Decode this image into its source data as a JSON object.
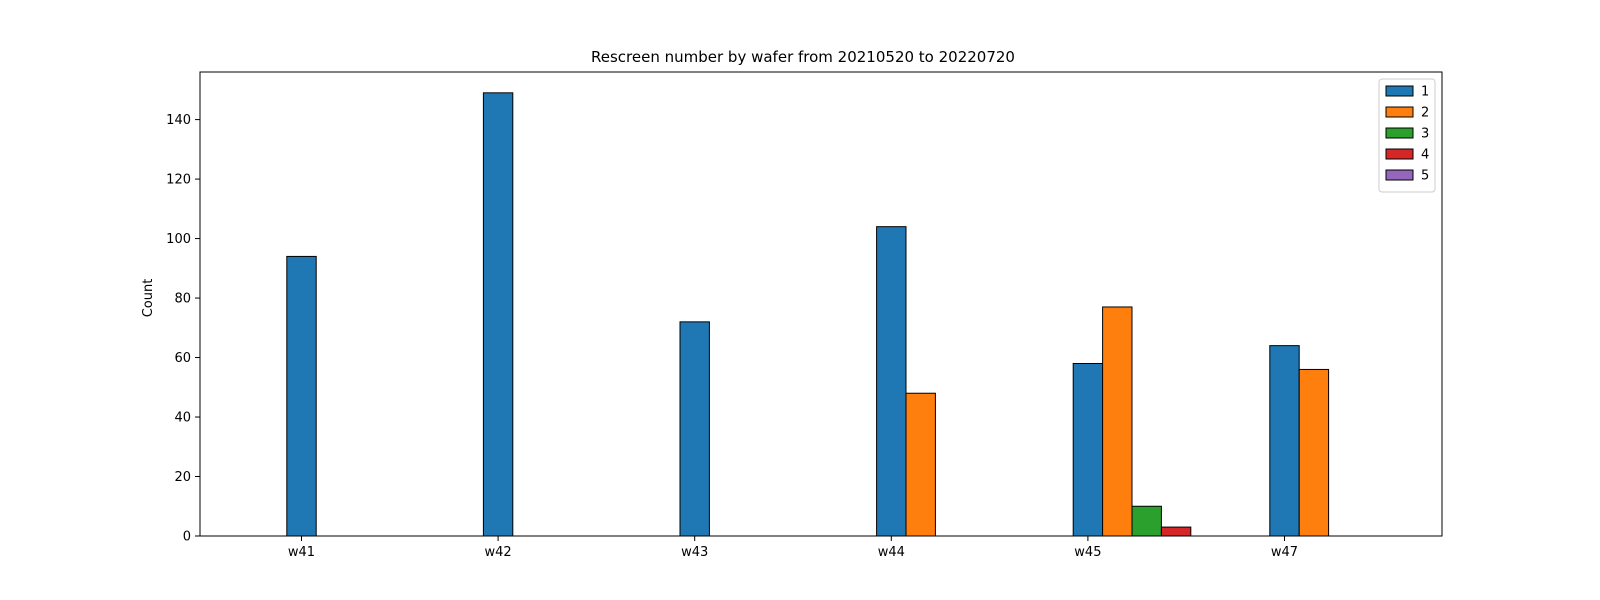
{
  "chart_data": {
    "type": "bar",
    "title": "Rescreen number  by wafer from 20210520 to 20220720",
    "xlabel": "",
    "ylabel": "Count",
    "categories": [
      "w41",
      "w42",
      "w43",
      "w44",
      "w45",
      "w47"
    ],
    "ylim": [
      0,
      156
    ],
    "yticks": [
      0,
      20,
      40,
      60,
      80,
      100,
      120,
      140
    ],
    "legend_position": "top-right",
    "grid": false,
    "series": [
      {
        "name": "1",
        "color": "#1f77b4",
        "values": [
          94,
          149,
          72,
          104,
          58,
          64
        ]
      },
      {
        "name": "2",
        "color": "#ff7f0e",
        "values": [
          0,
          0,
          0,
          48,
          77,
          56
        ]
      },
      {
        "name": "3",
        "color": "#2ca02c",
        "values": [
          0,
          0,
          0,
          0,
          10,
          0
        ]
      },
      {
        "name": "4",
        "color": "#d62728",
        "values": [
          0,
          0,
          0,
          0,
          3,
          0
        ]
      },
      {
        "name": "5",
        "color": "#9467bd",
        "values": [
          0,
          0,
          0,
          0,
          0,
          0
        ]
      }
    ]
  }
}
